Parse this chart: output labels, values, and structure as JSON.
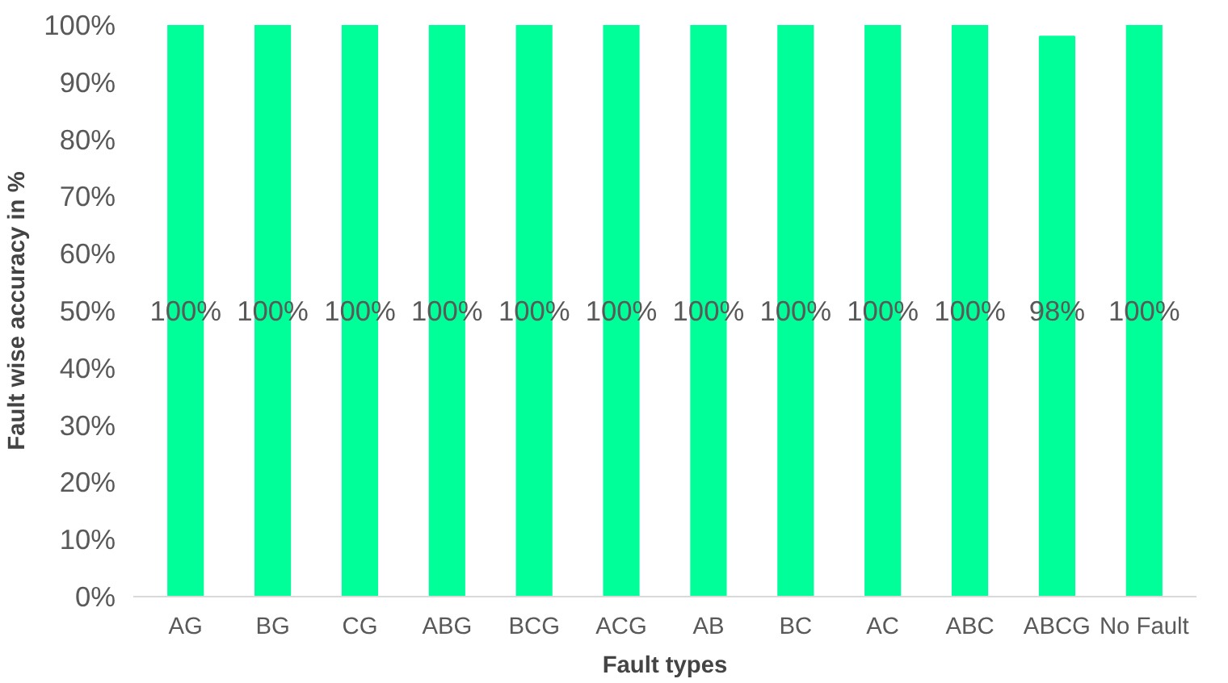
{
  "chart_data": {
    "type": "bar",
    "xlabel": "Fault types",
    "ylabel": "Fault wise accuracy in %",
    "categories": [
      "AG",
      "BG",
      "CG",
      "ABG",
      "BCG",
      "ACG",
      "AB",
      "BC",
      "AC",
      "ABC",
      "ABCG",
      "No Fault"
    ],
    "values": [
      100,
      100,
      100,
      100,
      100,
      100,
      100,
      100,
      100,
      100,
      98,
      100
    ],
    "value_labels": [
      "100%",
      "100%",
      "100%",
      "100%",
      "100%",
      "100%",
      "100%",
      "100%",
      "100%",
      "100%",
      "98%",
      "100%"
    ],
    "color": "#00ff99",
    "ylim": [
      0,
      100
    ],
    "yticks": [
      {
        "value": 0,
        "label": "0%"
      },
      {
        "value": 10,
        "label": "10%"
      },
      {
        "value": 20,
        "label": "20%"
      },
      {
        "value": 30,
        "label": "30%"
      },
      {
        "value": 40,
        "label": "40%"
      },
      {
        "value": 50,
        "label": "50%"
      },
      {
        "value": 60,
        "label": "60%"
      },
      {
        "value": 70,
        "label": "70%"
      },
      {
        "value": 80,
        "label": "80%"
      },
      {
        "value": 90,
        "label": "90%"
      },
      {
        "value": 100,
        "label": "100%"
      }
    ],
    "grid": false
  }
}
